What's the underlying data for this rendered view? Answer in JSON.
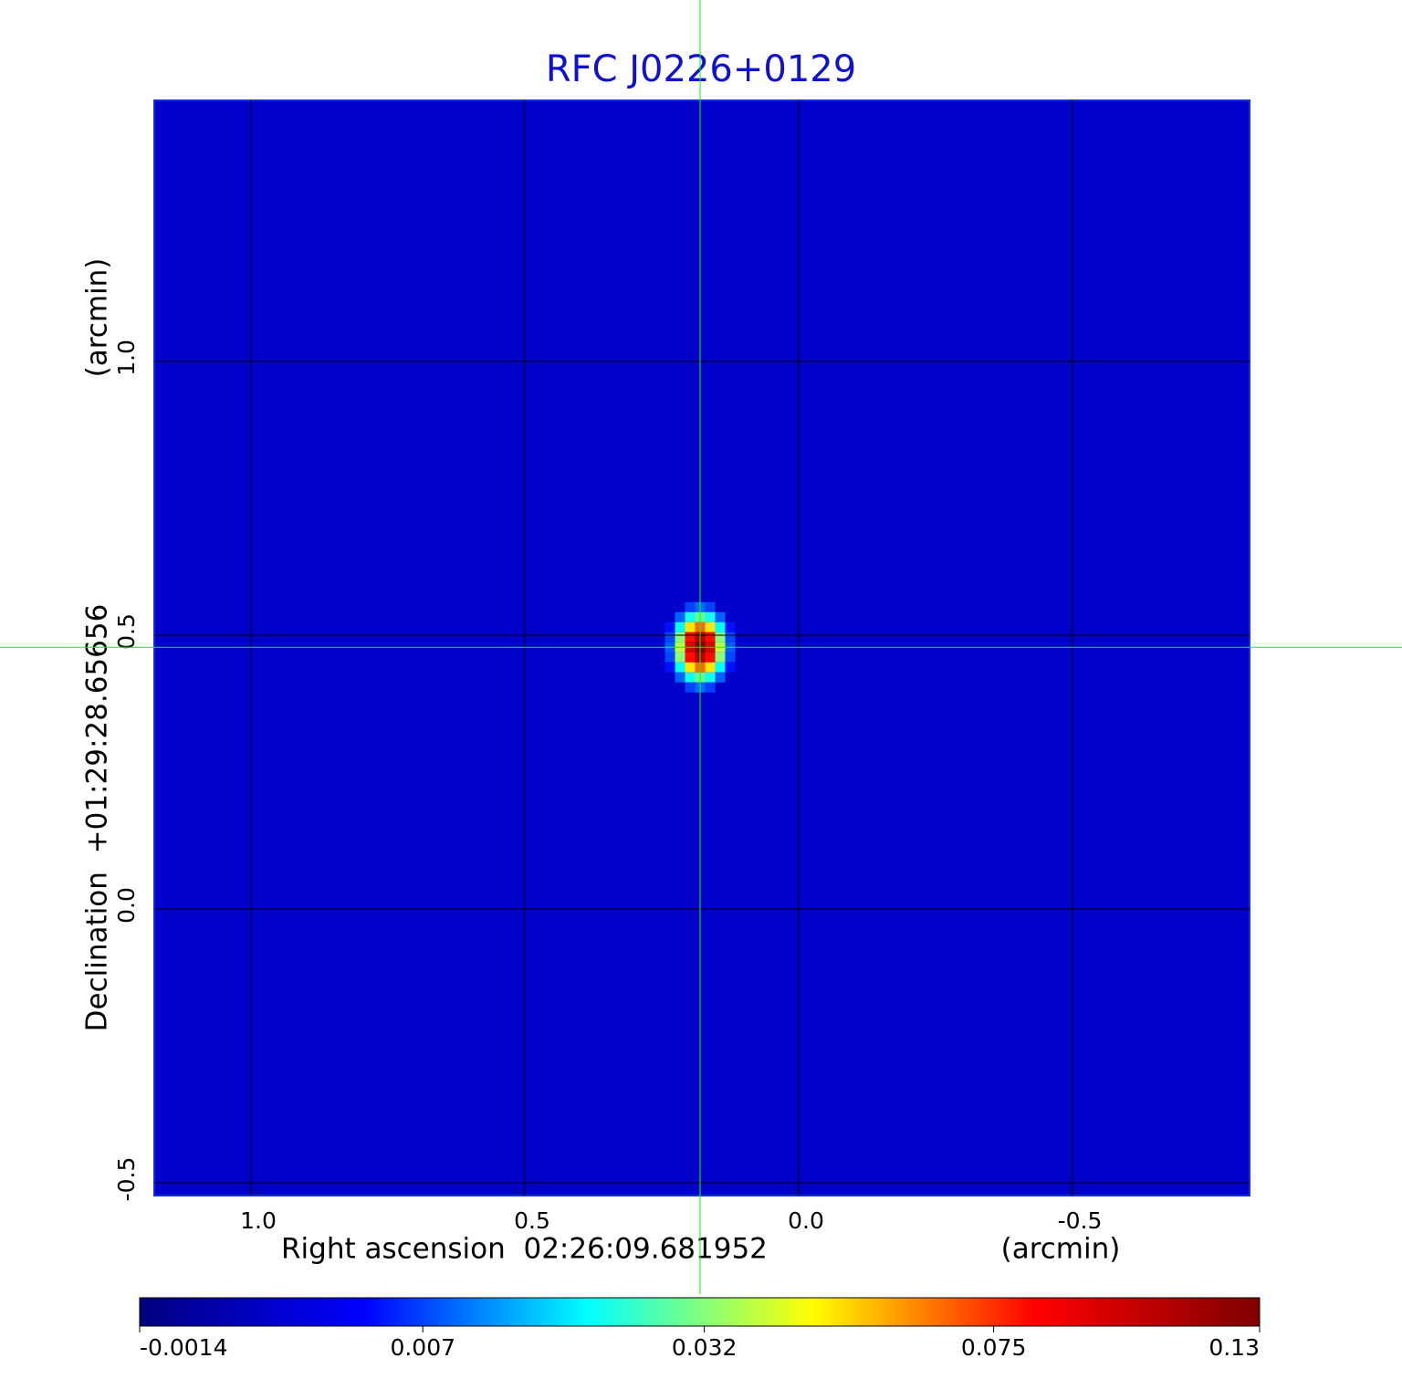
{
  "chart_data": {
    "type": "image",
    "title": "RFC J0226+0129",
    "x_label": "Right ascension  02:26:09.681952",
    "x_unit": "(arcmin)",
    "y_label": "Declination  +01:29:28.65656",
    "y_unit": "(arcmin)",
    "xlim": [
      1.1767,
      -0.8233
    ],
    "ylim": [
      -0.5233,
      1.4767
    ],
    "xticks": [
      {
        "value": 1,
        "label": "1.0"
      },
      0.5,
      {
        "value": 0,
        "label": "0.0"
      },
      -0.5
    ],
    "yticks": [
      -0.5,
      {
        "value": 0,
        "label": "0.0"
      },
      0.5,
      {
        "value": 1,
        "label": "1.0"
      }
    ],
    "grid": true,
    "background_level": 0.0004,
    "source": {
      "x": 0.18,
      "y": 0.478,
      "peak": 0.13
    },
    "crosshair": {
      "x": 0.18,
      "y": 0.478,
      "color": "#00ff00"
    },
    "colorbar": {
      "scale": "sqrt",
      "clim": [
        -0.0014,
        0.13
      ],
      "colors": [
        "#00007f",
        "#0000ff",
        "#00ffff",
        "#ffff00",
        "#ff0000",
        "#7f0000"
      ],
      "ticks": [
        -0.0014,
        0.007,
        0.032,
        0.075,
        0.13
      ]
    }
  }
}
